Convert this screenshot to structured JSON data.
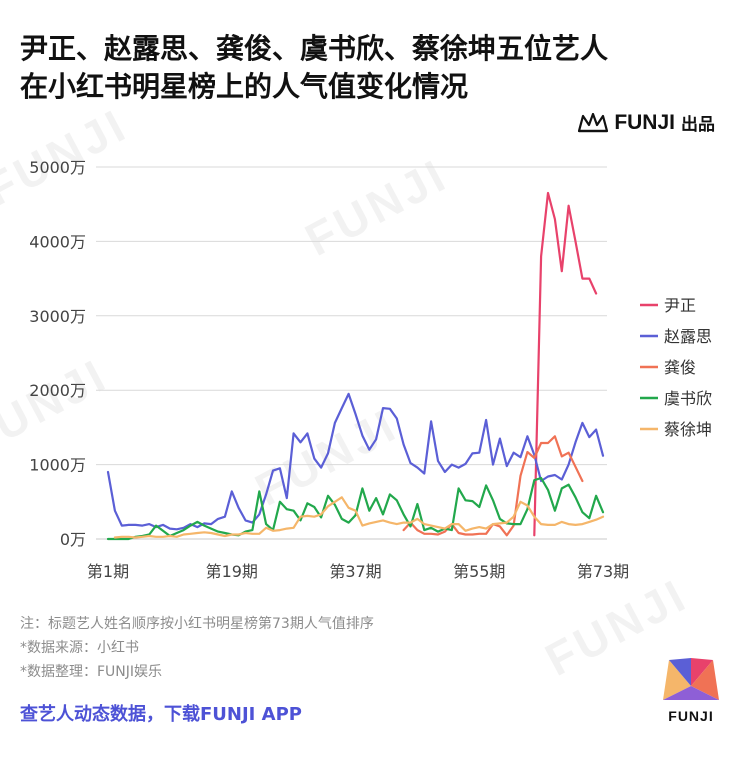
{
  "title_line1": "尹正、赵露思、龚俊、虞书欣、蔡徐坤五位艺人",
  "title_line2": "在小红书明星榜上的人气值变化情况",
  "brand": {
    "name": "FUNJI",
    "suffix": "出品"
  },
  "watermark": "FUNJI",
  "notes": {
    "note1": "注：标题艺人姓名顺序按小红书明星榜第73期人气值排序",
    "note2": "*数据来源：小红书",
    "note3": "*数据整理：FUNJI娱乐"
  },
  "cta": "查艺人动态数据，下载FUNJI APP",
  "logo_text": "FUNJI",
  "colors": {
    "title": "#111111",
    "cta": "#4d52d6",
    "grid": "#d9d9d9"
  },
  "chart_data": {
    "type": "line",
    "x_ticks": [
      1,
      19,
      37,
      55,
      73
    ],
    "x_tick_labels": [
      "第1期",
      "第19期",
      "第37期",
      "第55期",
      "第73期"
    ],
    "xlim": [
      1,
      73
    ],
    "y_ticks": [
      0,
      1000,
      2000,
      3000,
      4000,
      5000
    ],
    "y_tick_labels": [
      "0万",
      "1000万",
      "2000万",
      "3000万",
      "4000万",
      "5000万"
    ],
    "ylim": [
      0,
      5000
    ],
    "unit": "万",
    "grid": "horizontal",
    "legend_position": "right",
    "series": [
      {
        "name": "尹正",
        "color": "#e8426b",
        "start": 63,
        "values": [
          50,
          3800,
          4650,
          4300,
          3600,
          4480,
          4000,
          3500,
          3500,
          3300
        ]
      },
      {
        "name": "赵露思",
        "color": "#5b5fd6",
        "start": 1,
        "values": [
          900,
          380,
          180,
          190,
          190,
          180,
          200,
          160,
          190,
          140,
          130,
          150,
          200,
          160,
          210,
          200,
          270,
          300,
          640,
          420,
          250,
          220,
          330,
          600,
          920,
          950,
          550,
          1420,
          1300,
          1420,
          1080,
          960,
          1150,
          1560,
          1760,
          1950,
          1680,
          1390,
          1200,
          1340,
          1760,
          1750,
          1620,
          1270,
          1020,
          960,
          880,
          1580,
          1050,
          900,
          1000,
          960,
          1010,
          1150,
          1160,
          1600,
          1000,
          1350,
          980,
          1160,
          1100,
          1380,
          1130,
          780,
          840,
          860,
          800,
          1000,
          1300,
          1560,
          1370,
          1470,
          1120
        ]
      },
      {
        "name": "龚俊",
        "color": "#f07255",
        "start": 44,
        "values": [
          120,
          220,
          120,
          70,
          70,
          60,
          100,
          200,
          80,
          60,
          60,
          70,
          70,
          200,
          170,
          50,
          180,
          850,
          1170,
          1090,
          1290,
          1290,
          1380,
          1110,
          1160,
          970,
          780
        ]
      },
      {
        "name": "虞书欣",
        "color": "#22a84c",
        "start": 1,
        "values": [
          0,
          0,
          0,
          0,
          30,
          40,
          60,
          180,
          110,
          40,
          80,
          120,
          180,
          230,
          180,
          140,
          100,
          80,
          60,
          50,
          100,
          120,
          640,
          200,
          120,
          500,
          400,
          380,
          250,
          480,
          430,
          290,
          580,
          460,
          270,
          220,
          320,
          680,
          380,
          550,
          330,
          600,
          520,
          330,
          170,
          470,
          120,
          150,
          100,
          140,
          120,
          680,
          520,
          510,
          430,
          720,
          520,
          270,
          210,
          200,
          200,
          400,
          790,
          820,
          660,
          380,
          680,
          730,
          560,
          360,
          280,
          580,
          360
        ]
      },
      {
        "name": "蔡徐坤",
        "color": "#f5b66a",
        "start": 2,
        "values": [
          20,
          30,
          30,
          20,
          30,
          40,
          30,
          30,
          40,
          30,
          60,
          70,
          80,
          90,
          80,
          60,
          40,
          60,
          60,
          80,
          70,
          70,
          150,
          110,
          120,
          140,
          150,
          300,
          310,
          300,
          330,
          440,
          500,
          560,
          420,
          380,
          180,
          210,
          230,
          250,
          220,
          200,
          220,
          220,
          270,
          200,
          180,
          160,
          140,
          200,
          200,
          110,
          140,
          160,
          140,
          200,
          210,
          220,
          300,
          500,
          450,
          300,
          200,
          190,
          190,
          230,
          200,
          190,
          200,
          230,
          260,
          300
        ]
      }
    ]
  }
}
